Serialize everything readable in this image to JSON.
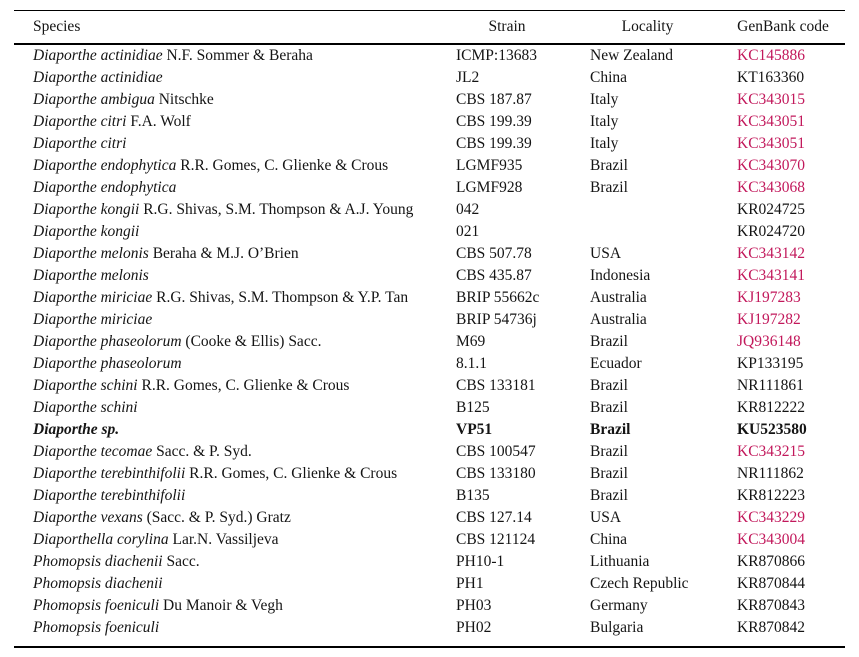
{
  "colors": {
    "accent_link": "#C2185B",
    "text": "#141414",
    "rule": "#000000"
  },
  "header": {
    "species": "Species",
    "strain": "Strain",
    "locality": "Locality",
    "genbank": "GenBank code"
  },
  "rows": [
    {
      "name": "Diaporthe actinidiae",
      "authority": " N.F. Sommer & Beraha",
      "strain": "ICMP:13683",
      "locality": "New Zealand",
      "genbank": "KC145886",
      "status": "link",
      "weight": "normal"
    },
    {
      "name": "Diaporthe actinidiae",
      "authority": "",
      "strain": "JL2",
      "locality": "China",
      "genbank": "KT163360",
      "status": "plain",
      "weight": "normal"
    },
    {
      "name": "Diaporthe ambigua",
      "authority": " Nitschke",
      "strain": "CBS 187.87",
      "locality": "Italy",
      "genbank": "KC343015",
      "status": "link",
      "weight": "normal"
    },
    {
      "name": "Diaporthe citri",
      "authority": " F.A. Wolf",
      "strain": "CBS 199.39",
      "locality": "Italy",
      "genbank": "KC343051",
      "status": "link",
      "weight": "normal"
    },
    {
      "name": "Diaporthe citri",
      "authority": "",
      "strain": "CBS 199.39",
      "locality": "Italy",
      "genbank": "KC343051",
      "status": "link",
      "weight": "normal"
    },
    {
      "name": "Diaporthe endophytica",
      "authority": " R.R. Gomes, C. Glienke & Crous",
      "strain": "LGMF935",
      "locality": "Brazil",
      "genbank": "KC343070",
      "status": "link",
      "weight": "normal"
    },
    {
      "name": "Diaporthe endophytica",
      "authority": "",
      "strain": "LGMF928",
      "locality": "Brazil",
      "genbank": "KC343068",
      "status": "link",
      "weight": "normal"
    },
    {
      "name": "Diaporthe kongii",
      "authority": " R.G. Shivas, S.M. Thompson & A.J. Young",
      "strain": "042",
      "locality": "",
      "genbank": "KR024725",
      "status": "plain",
      "weight": "normal"
    },
    {
      "name": "Diaporthe kongii",
      "authority": "",
      "strain": "021",
      "locality": "",
      "genbank": "KR024720",
      "status": "plain",
      "weight": "normal"
    },
    {
      "name": "Diaporthe melonis",
      "authority": " Beraha & M.J. O’Brien",
      "strain": "CBS 507.78",
      "locality": "USA",
      "genbank": "KC343142",
      "status": "link",
      "weight": "normal"
    },
    {
      "name": "Diaporthe melonis",
      "authority": "",
      "strain": "CBS 435.87",
      "locality": "Indonesia",
      "genbank": "KC343141",
      "status": "link",
      "weight": "normal"
    },
    {
      "name": "Diaporthe miriciae",
      "authority": " R.G. Shivas, S.M. Thompson & Y.P. Tan",
      "strain": "BRIP 55662c",
      "locality": "Australia",
      "genbank": "KJ197283",
      "status": "link",
      "weight": "normal"
    },
    {
      "name": "Diaporthe miriciae",
      "authority": "",
      "strain": "BRIP 54736j",
      "locality": "Australia",
      "genbank": "KJ197282",
      "status": "link",
      "weight": "normal"
    },
    {
      "name": "Diaporthe phaseolorum",
      "authority": " (Cooke & Ellis) Sacc.",
      "strain": "M69",
      "locality": "Brazil",
      "genbank": "JQ936148",
      "status": "link",
      "weight": "normal"
    },
    {
      "name": "Diaporthe phaseolorum",
      "authority": "",
      "strain": "8.1.1",
      "locality": "Ecuador",
      "genbank": "KP133195",
      "status": "plain",
      "weight": "normal"
    },
    {
      "name": "Diaporthe schini",
      "authority": " R.R. Gomes, C. Glienke & Crous",
      "strain": "CBS 133181",
      "locality": "Brazil",
      "genbank": "NR111861",
      "status": "plain",
      "weight": "normal"
    },
    {
      "name": "Diaporthe schini",
      "authority": "",
      "strain": "B125",
      "locality": "Brazil",
      "genbank": "KR812222",
      "status": "plain",
      "weight": "normal"
    },
    {
      "name": "Diaporthe sp.",
      "authority": "",
      "strain": "VP51",
      "locality": "Brazil",
      "genbank": "KU523580",
      "status": "plain",
      "weight": "bold"
    },
    {
      "name": "Diaporthe tecomae",
      "authority": " Sacc. & P. Syd.",
      "strain": "CBS 100547",
      "locality": "Brazil",
      "genbank": "KC343215",
      "status": "link",
      "weight": "normal"
    },
    {
      "name": "Diaporthe terebinthifolii",
      "authority": " R.R. Gomes, C. Glienke & Crous",
      "strain": "CBS 133180",
      "locality": "Brazil",
      "genbank": "NR111862",
      "status": "plain",
      "weight": "normal"
    },
    {
      "name": "Diaporthe terebinthifolii",
      "authority": "",
      "strain": "B135",
      "locality": "Brazil",
      "genbank": "KR812223",
      "status": "plain",
      "weight": "normal"
    },
    {
      "name": "Diaporthe vexans",
      "authority": " (Sacc. & P. Syd.) Gratz",
      "strain": "CBS 127.14",
      "locality": "USA",
      "genbank": "KC343229",
      "status": "link",
      "weight": "normal"
    },
    {
      "name": "Diaporthella corylina",
      "authority": " Lar.N. Vassiljeva",
      "strain": "CBS 121124",
      "locality": "China",
      "genbank": "KC343004",
      "status": "link",
      "weight": "normal"
    },
    {
      "name": "Phomopsis diachenii",
      "authority": " Sacc.",
      "strain": "PH10-1",
      "locality": "Lithuania",
      "genbank": "KR870866",
      "status": "plain",
      "weight": "normal"
    },
    {
      "name": "Phomopsis diachenii",
      "authority": "",
      "strain": "PH1",
      "locality": "Czech Republic",
      "genbank": "KR870844",
      "status": "plain",
      "weight": "normal"
    },
    {
      "name": "Phomopsis foeniculi",
      "authority": " Du Manoir & Vegh",
      "strain": "PH03",
      "locality": "Germany",
      "genbank": "KR870843",
      "status": "plain",
      "weight": "normal"
    },
    {
      "name": "Phomopsis foeniculi",
      "authority": "",
      "strain": "PH02",
      "locality": "Bulgaria",
      "genbank": "KR870842",
      "status": "plain",
      "weight": "normal"
    }
  ]
}
